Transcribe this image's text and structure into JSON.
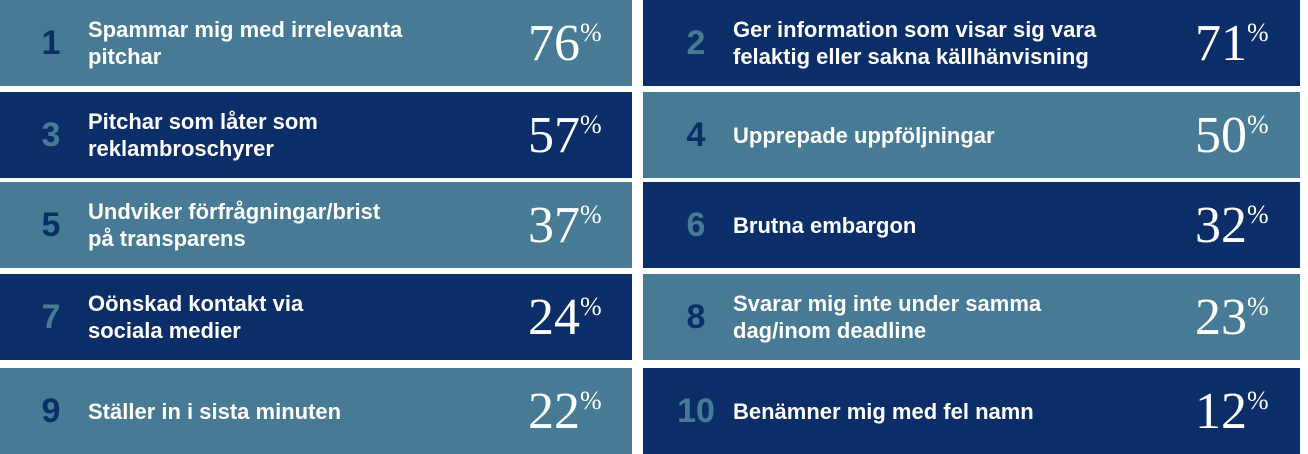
{
  "items": [
    {
      "rank": "1",
      "lines": [
        "Spammar mig med irrelevanta",
        "pitchar"
      ],
      "value": 76,
      "unit": "%"
    },
    {
      "rank": "2",
      "lines": [
        "Ger information som visar sig vara",
        "felaktig eller sakna källhänvisning"
      ],
      "value": 71,
      "unit": "%"
    },
    {
      "rank": "3",
      "lines": [
        "Pitchar som låter som",
        "reklambroschyrer"
      ],
      "value": 57,
      "unit": "%"
    },
    {
      "rank": "4",
      "lines": [
        "Upprepade uppföljningar"
      ],
      "value": 50,
      "unit": "%"
    },
    {
      "rank": "5",
      "lines": [
        "Undviker förfrågningar/brist",
        "på transparens"
      ],
      "value": 37,
      "unit": "%"
    },
    {
      "rank": "6",
      "lines": [
        "Brutna embargon"
      ],
      "value": 32,
      "unit": "%"
    },
    {
      "rank": "7",
      "lines": [
        "Oönskad kontakt via",
        "sociala medier"
      ],
      "value": 24,
      "unit": "%"
    },
    {
      "rank": "8",
      "lines": [
        "Svarar mig inte under samma",
        "dag/inom deadline"
      ],
      "value": 23,
      "unit": "%"
    },
    {
      "rank": "9",
      "lines": [
        "Ställer in i sista minuten"
      ],
      "value": 22,
      "unit": "%"
    },
    {
      "rank": "10",
      "lines": [
        "Benämner mig med fel namn"
      ],
      "value": 12,
      "unit": "%"
    }
  ]
}
